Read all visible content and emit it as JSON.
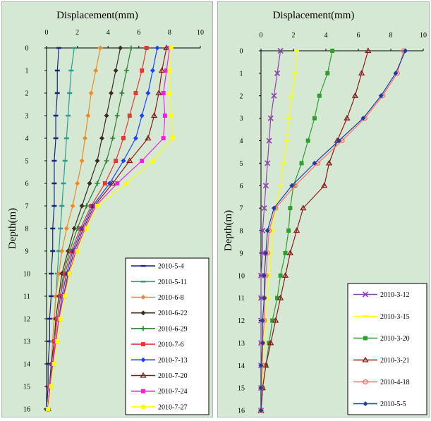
{
  "chart_data": [
    {
      "type": "line",
      "title": "",
      "xlabel": "Displacement(mm)",
      "ylabel": "Depth(m)",
      "xlim": [
        0,
        10
      ],
      "ylim": [
        16,
        0
      ],
      "x_ticks": [
        "0",
        "2",
        "4",
        "6",
        "8",
        "10"
      ],
      "y_ticks": [
        "0",
        "1",
        "2",
        "3",
        "4",
        "5",
        "6",
        "7",
        "8",
        "9",
        "10",
        "11",
        "12",
        "13",
        "14",
        "15",
        "16"
      ],
      "background": "#d5e8d4",
      "grid": false,
      "legend_position": "bottom-right",
      "depth": [
        0,
        1,
        2,
        3,
        4,
        5,
        6,
        7,
        8,
        9,
        10,
        11,
        12,
        13,
        14,
        15,
        16
      ],
      "series": [
        {
          "name": "2010-5-4",
          "color": "#1a237e",
          "marker": "dash",
          "values": [
            0.8,
            0.7,
            0.7,
            0.6,
            0.6,
            0.5,
            0.5,
            0.5,
            0.4,
            0.4,
            0.3,
            0.3,
            0.2,
            0.2,
            0.1,
            0.1,
            0.0
          ]
        },
        {
          "name": "2010-5-11",
          "color": "#2a9d8f",
          "marker": "dash",
          "values": [
            1.8,
            1.6,
            1.5,
            1.4,
            1.3,
            1.2,
            1.1,
            1.0,
            0.9,
            0.8,
            0.7,
            0.6,
            0.5,
            0.4,
            0.3,
            0.2,
            0.1
          ]
        },
        {
          "name": "2010-6-8",
          "color": "#f08a24",
          "marker": "diamond",
          "values": [
            3.5,
            3.2,
            2.9,
            2.7,
            2.5,
            2.3,
            2.0,
            1.7,
            1.3,
            1.0,
            0.8,
            0.6,
            0.5,
            0.4,
            0.3,
            0.2,
            0.1
          ]
        },
        {
          "name": "2010-6-22",
          "color": "#3d2b1f",
          "marker": "diamond",
          "values": [
            4.8,
            4.5,
            4.2,
            3.9,
            3.6,
            3.3,
            2.8,
            2.3,
            1.8,
            1.4,
            1.0,
            0.8,
            0.6,
            0.5,
            0.3,
            0.2,
            0.1
          ]
        },
        {
          "name": "2010-6-29",
          "color": "#2e7d32",
          "marker": "plus",
          "values": [
            5.5,
            5.2,
            4.9,
            4.6,
            4.3,
            3.9,
            3.3,
            2.6,
            2.0,
            1.5,
            1.1,
            0.9,
            0.7,
            0.5,
            0.4,
            0.2,
            0.1
          ]
        },
        {
          "name": "2010-7-6",
          "color": "#e53935",
          "marker": "square",
          "values": [
            6.5,
            6.2,
            5.8,
            5.4,
            5.0,
            4.5,
            3.8,
            2.9,
            2.2,
            1.6,
            1.2,
            0.9,
            0.7,
            0.5,
            0.4,
            0.2,
            0.1
          ]
        },
        {
          "name": "2010-7-13",
          "color": "#1e40ff",
          "marker": "diamond",
          "values": [
            7.2,
            6.9,
            6.6,
            6.2,
            5.8,
            5.0,
            4.1,
            3.0,
            2.3,
            1.7,
            1.3,
            1.0,
            0.8,
            0.6,
            0.4,
            0.2,
            0.1
          ]
        },
        {
          "name": "2010-7-20",
          "color": "#8b1a1a",
          "marker": "triangle",
          "values": [
            7.8,
            7.5,
            7.3,
            7.0,
            6.6,
            5.4,
            4.3,
            3.1,
            2.4,
            1.8,
            1.4,
            1.1,
            0.8,
            0.6,
            0.4,
            0.2,
            0.1
          ]
        },
        {
          "name": "2010-7-24",
          "color": "#ee22dd",
          "marker": "square",
          "values": [
            8.0,
            7.8,
            7.6,
            7.7,
            7.6,
            6.2,
            4.6,
            3.2,
            2.5,
            1.9,
            1.5,
            1.1,
            0.8,
            0.6,
            0.4,
            0.2,
            0.1
          ]
        },
        {
          "name": "2010-7-27",
          "color": "#ffff00",
          "marker": "square",
          "values": [
            8.1,
            8.0,
            8.0,
            8.1,
            8.2,
            6.9,
            5.2,
            3.3,
            2.6,
            2.0,
            1.5,
            1.2,
            0.9,
            0.7,
            0.5,
            0.3,
            0.1
          ]
        }
      ]
    },
    {
      "type": "line",
      "title": "",
      "xlabel": "Displacement(mm)",
      "ylabel": "Depth(m)",
      "xlim": [
        0,
        10
      ],
      "ylim": [
        16,
        0
      ],
      "x_ticks": [
        "0",
        "2",
        "4",
        "6",
        "8",
        "10"
      ],
      "y_ticks": [
        "0",
        "1",
        "2",
        "3",
        "4",
        "5",
        "6",
        "7",
        "8",
        "9",
        "10",
        "11",
        "12",
        "13",
        "14",
        "15",
        "16"
      ],
      "background": "#d5e8d4",
      "grid": false,
      "legend_position": "bottom-right",
      "depth": [
        0,
        1,
        2,
        3,
        4,
        5,
        6,
        7,
        8,
        9,
        10,
        11,
        12,
        13,
        14,
        15,
        16
      ],
      "series": [
        {
          "name": "2010-3-12",
          "color": "#8e44ad",
          "marker": "x",
          "values": [
            1.2,
            1.0,
            0.8,
            0.6,
            0.5,
            0.4,
            0.3,
            0.2,
            0.1,
            0.1,
            0.0,
            0.0,
            0.0,
            0.0,
            0.0,
            0.0,
            0.0
          ]
        },
        {
          "name": "2010-3-15",
          "color": "#ffff00",
          "marker": "dash",
          "values": [
            2.2,
            2.1,
            1.9,
            1.7,
            1.6,
            1.4,
            1.2,
            0.9,
            0.7,
            0.6,
            0.5,
            0.4,
            0.3,
            0.2,
            0.1,
            0.1,
            0.0
          ]
        },
        {
          "name": "2010-3-20",
          "color": "#2e9e2e",
          "marker": "square",
          "values": [
            4.4,
            4.1,
            3.6,
            3.3,
            2.9,
            2.5,
            2.0,
            1.8,
            1.7,
            1.5,
            1.2,
            1.0,
            0.7,
            0.5,
            0.3,
            0.1,
            0.0
          ]
        },
        {
          "name": "2010-3-21",
          "color": "#8b1a1a",
          "marker": "triangle",
          "values": [
            6.6,
            6.2,
            5.8,
            5.3,
            4.7,
            4.2,
            3.9,
            2.6,
            2.2,
            1.8,
            1.5,
            1.2,
            0.9,
            0.6,
            0.3,
            0.1,
            0.0
          ]
        },
        {
          "name": "2010-4-18",
          "color": "#ff6b6b",
          "marker": "circle",
          "values": [
            8.8,
            8.4,
            7.5,
            6.4,
            5.0,
            3.5,
            2.1,
            0.9,
            0.5,
            0.4,
            0.3,
            0.2,
            0.2,
            0.1,
            0.1,
            0.0,
            0.0
          ]
        },
        {
          "name": "2010-5-5",
          "color": "#1a3da8",
          "marker": "diamond",
          "values": [
            8.9,
            8.3,
            7.4,
            6.3,
            4.8,
            3.3,
            1.9,
            0.8,
            0.4,
            0.3,
            0.2,
            0.2,
            0.1,
            0.1,
            0.0,
            0.0,
            0.0
          ]
        }
      ]
    }
  ]
}
